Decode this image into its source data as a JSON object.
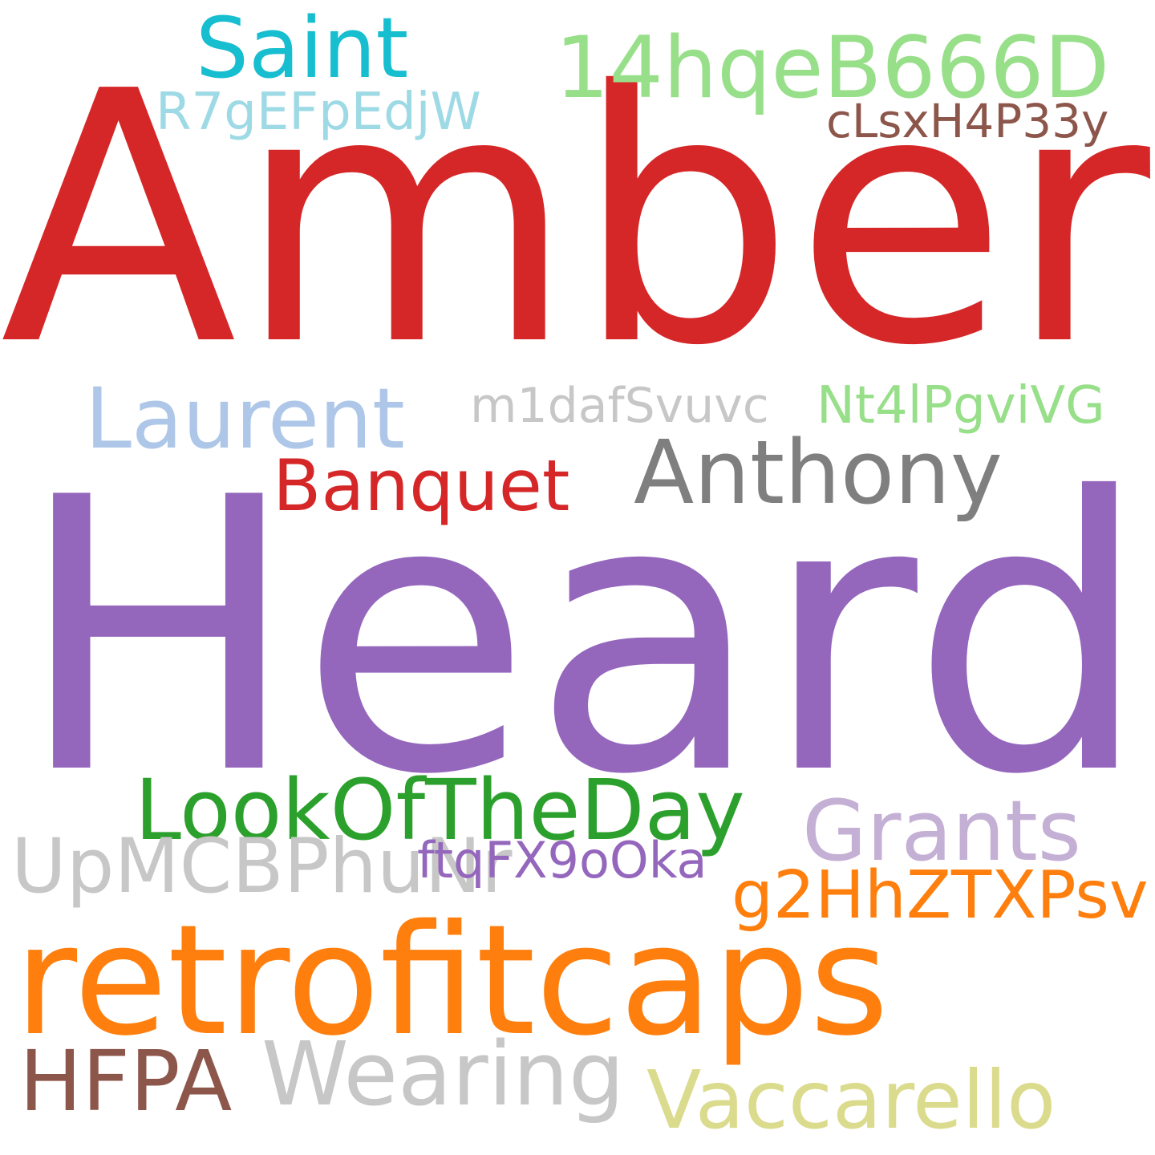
{
  "words": [
    {
      "text": "Amber",
      "color": "#d62728"
    },
    {
      "text": "Heard",
      "color": "#9467bd"
    },
    {
      "text": "retrofitcaps",
      "color": "#ff7f0e"
    },
    {
      "text": "Saint",
      "color": "#17becf"
    },
    {
      "text": "14hqeB666D",
      "color": "#98df8a"
    },
    {
      "text": "R7gEFpEdjW",
      "color": "#9edae5"
    },
    {
      "text": "cLsxH4P33y",
      "color": "#8c564b"
    },
    {
      "text": "Laurent",
      "color": "#aec7e8"
    },
    {
      "text": "m1dafSvuvc",
      "color": "#c7c7c7"
    },
    {
      "text": "Nt4lPgviVG",
      "color": "#98df8a"
    },
    {
      "text": "Anthony",
      "color": "#7f7f7f"
    },
    {
      "text": "Banquet",
      "color": "#d62728"
    },
    {
      "text": "LookOfTheDay",
      "color": "#2ca02c"
    },
    {
      "text": "Grants",
      "color": "#c5b0d5"
    },
    {
      "text": "UpMCBPhuNr",
      "color": "#c7c7c7"
    },
    {
      "text": "ftqFX9oOka",
      "color": "#9467bd"
    },
    {
      "text": "g2HhZTXPsv",
      "color": "#ff7f0e"
    },
    {
      "text": "HFPA",
      "color": "#8c564b"
    },
    {
      "text": "Wearing",
      "color": "#c7c7c7"
    },
    {
      "text": "Vaccarello",
      "color": "#dbdb8d"
    }
  ]
}
